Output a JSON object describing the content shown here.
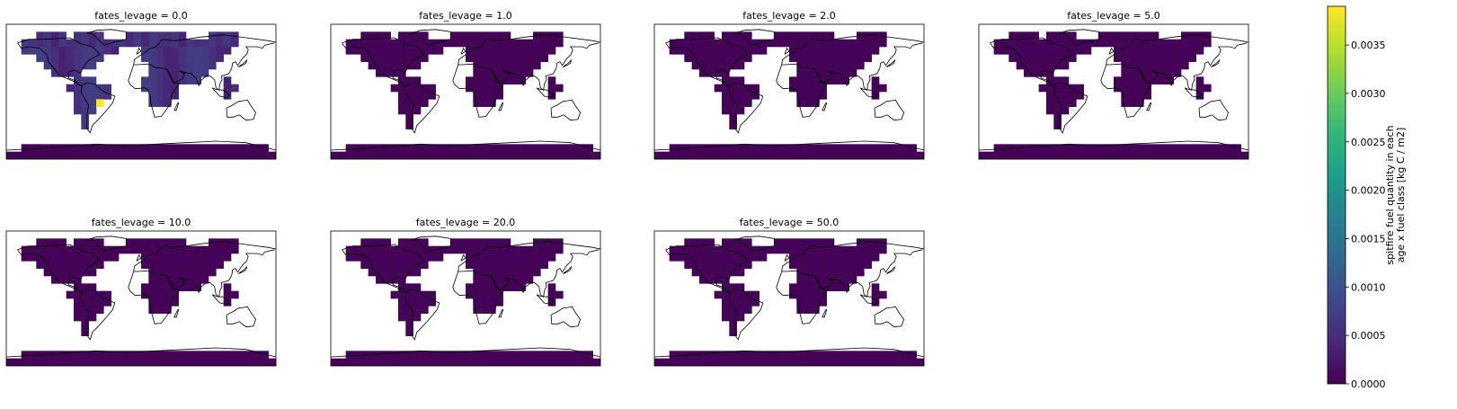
{
  "chart_data": {
    "type": "heatmap",
    "facet_variable": "fates_levage",
    "panels": [
      {
        "title": "fates_levage = 0.0",
        "level": 0.0
      },
      {
        "title": "fates_levage = 1.0",
        "level": 1.0
      },
      {
        "title": "fates_levage = 2.0",
        "level": 2.0
      },
      {
        "title": "fates_levage = 5.0",
        "level": 5.0
      },
      {
        "title": "fates_levage = 10.0",
        "level": 10.0
      },
      {
        "title": "fates_levage = 20.0",
        "level": 20.0
      },
      {
        "title": "fates_levage = 50.0",
        "level": 50.0
      }
    ],
    "colorbar": {
      "label_lines": [
        "spitfire fuel quantity in each",
        "age x fuel class [kg C / m2]"
      ],
      "vmin": 0.0,
      "vmax": 0.0039,
      "ticks": [
        0.0,
        0.0005,
        0.001,
        0.0015,
        0.002,
        0.0025,
        0.003,
        0.0035
      ],
      "tick_labels": [
        "0.0000",
        "0.0005",
        "0.0010",
        "0.0015",
        "0.0020",
        "0.0025",
        "0.0030",
        "0.0035"
      ],
      "colormap": "viridis"
    },
    "colors": {
      "background_ocean": "#ffffff",
      "low_value": "#440154",
      "high_value": "#fde725",
      "coastline": "#000000"
    },
    "notes_visible": {
      "panel_0_max_value_approx": 0.0039,
      "panel_0_typical_value_approx": 0.0004,
      "other_panels_value_approx": 0.0
    }
  }
}
